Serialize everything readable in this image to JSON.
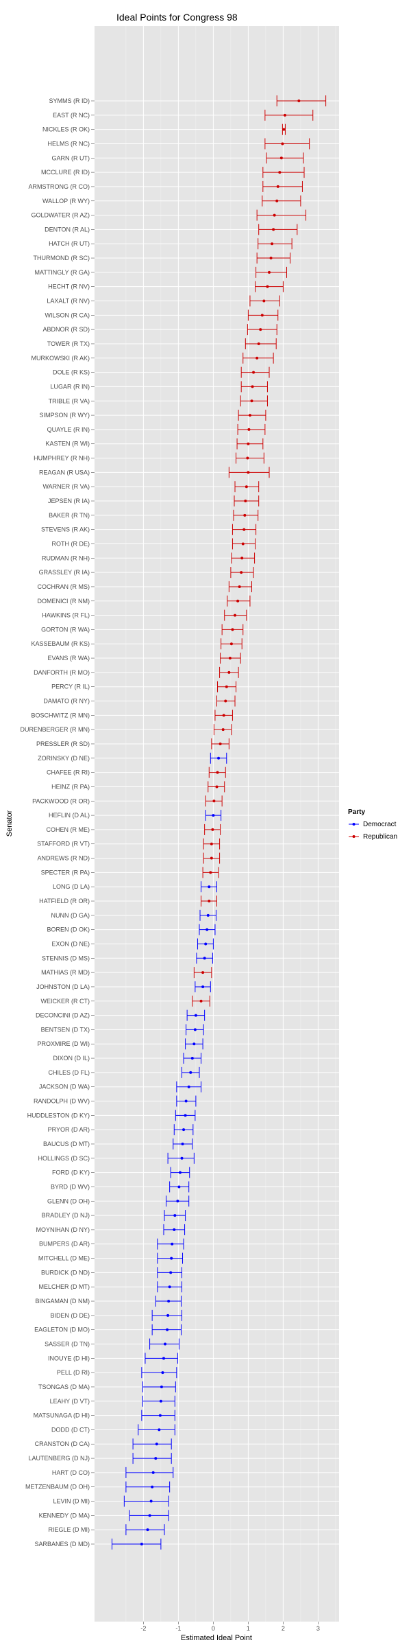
{
  "chart_data": {
    "type": "scatter",
    "title": "Ideal Points for Congress 98",
    "xlabel": "Estimated Ideal Point",
    "ylabel": "Senator",
    "xlim": [
      -3.4,
      3.6
    ],
    "xticks": [
      -2,
      -1,
      0,
      1,
      2,
      3
    ],
    "grid": true,
    "legend": {
      "title": "Party",
      "position": "right"
    },
    "series": [
      {
        "name": "Democract",
        "color": "#0000ff"
      },
      {
        "name": "Republican",
        "color": "#cc0000"
      }
    ],
    "senators": [
      {
        "name": "SYMMS (R ID)",
        "party": "Republican",
        "x": 2.45,
        "lo": 1.82,
        "hi": 3.22
      },
      {
        "name": "EAST (R NC)",
        "party": "Republican",
        "x": 2.05,
        "lo": 1.48,
        "hi": 2.85
      },
      {
        "name": "NICKLES (R OK)",
        "party": "Republican",
        "x": 2.02,
        "lo": 1.98,
        "hi": 2.06
      },
      {
        "name": "HELMS (R NC)",
        "party": "Republican",
        "x": 1.98,
        "lo": 1.48,
        "hi": 2.75
      },
      {
        "name": "GARN (R UT)",
        "party": "Republican",
        "x": 1.95,
        "lo": 1.52,
        "hi": 2.58
      },
      {
        "name": "MCCLURE (R ID)",
        "party": "Republican",
        "x": 1.9,
        "lo": 1.42,
        "hi": 2.6
      },
      {
        "name": "ARMSTRONG (R CO)",
        "party": "Republican",
        "x": 1.85,
        "lo": 1.42,
        "hi": 2.55
      },
      {
        "name": "WALLOP (R WY)",
        "party": "Republican",
        "x": 1.82,
        "lo": 1.4,
        "hi": 2.5
      },
      {
        "name": "GOLDWATER (R AZ)",
        "party": "Republican",
        "x": 1.75,
        "lo": 1.25,
        "hi": 2.65
      },
      {
        "name": "DENTON (R AL)",
        "party": "Republican",
        "x": 1.72,
        "lo": 1.3,
        "hi": 2.4
      },
      {
        "name": "HATCH (R UT)",
        "party": "Republican",
        "x": 1.68,
        "lo": 1.28,
        "hi": 2.25
      },
      {
        "name": "THURMOND (R SC)",
        "party": "Republican",
        "x": 1.65,
        "lo": 1.25,
        "hi": 2.2
      },
      {
        "name": "MATTINGLY (R GA)",
        "party": "Republican",
        "x": 1.6,
        "lo": 1.22,
        "hi": 2.1
      },
      {
        "name": "HECHT (R NV)",
        "party": "Republican",
        "x": 1.55,
        "lo": 1.2,
        "hi": 2.0
      },
      {
        "name": "LAXALT (R NV)",
        "party": "Republican",
        "x": 1.45,
        "lo": 1.05,
        "hi": 1.9
      },
      {
        "name": "WILSON (R CA)",
        "party": "Republican",
        "x": 1.4,
        "lo": 1.0,
        "hi": 1.85
      },
      {
        "name": "ABDNOR (R SD)",
        "party": "Republican",
        "x": 1.35,
        "lo": 0.98,
        "hi": 1.82
      },
      {
        "name": "TOWER (R TX)",
        "party": "Republican",
        "x": 1.3,
        "lo": 0.92,
        "hi": 1.8
      },
      {
        "name": "MURKOWSKI (R AK)",
        "party": "Republican",
        "x": 1.25,
        "lo": 0.85,
        "hi": 1.72
      },
      {
        "name": "DOLE (R KS)",
        "party": "Republican",
        "x": 1.15,
        "lo": 0.8,
        "hi": 1.6
      },
      {
        "name": "LUGAR (R IN)",
        "party": "Republican",
        "x": 1.12,
        "lo": 0.8,
        "hi": 1.55
      },
      {
        "name": "TRIBLE (R VA)",
        "party": "Republican",
        "x": 1.1,
        "lo": 0.78,
        "hi": 1.55
      },
      {
        "name": "SIMPSON (R WY)",
        "party": "Republican",
        "x": 1.05,
        "lo": 0.72,
        "hi": 1.5
      },
      {
        "name": "QUAYLE (R IN)",
        "party": "Republican",
        "x": 1.02,
        "lo": 0.7,
        "hi": 1.48
      },
      {
        "name": "KASTEN (R WI)",
        "party": "Republican",
        "x": 1.0,
        "lo": 0.68,
        "hi": 1.42
      },
      {
        "name": "HUMPHREY (R NH)",
        "party": "Republican",
        "x": 0.98,
        "lo": 0.65,
        "hi": 1.45
      },
      {
        "name": "REAGAN (R USA)",
        "party": "Republican",
        "x": 1.0,
        "lo": 0.45,
        "hi": 1.6
      },
      {
        "name": "WARNER (R VA)",
        "party": "Republican",
        "x": 0.95,
        "lo": 0.62,
        "hi": 1.3
      },
      {
        "name": "JEPSEN (R IA)",
        "party": "Republican",
        "x": 0.92,
        "lo": 0.6,
        "hi": 1.3
      },
      {
        "name": "BAKER (R TN)",
        "party": "Republican",
        "x": 0.9,
        "lo": 0.58,
        "hi": 1.28
      },
      {
        "name": "STEVENS (R AK)",
        "party": "Republican",
        "x": 0.88,
        "lo": 0.55,
        "hi": 1.22
      },
      {
        "name": "ROTH (R DE)",
        "party": "Republican",
        "x": 0.85,
        "lo": 0.55,
        "hi": 1.2
      },
      {
        "name": "RUDMAN (R NH)",
        "party": "Republican",
        "x": 0.82,
        "lo": 0.52,
        "hi": 1.18
      },
      {
        "name": "GRASSLEY (R IA)",
        "party": "Republican",
        "x": 0.8,
        "lo": 0.5,
        "hi": 1.15
      },
      {
        "name": "COCHRAN (R MS)",
        "party": "Republican",
        "x": 0.75,
        "lo": 0.45,
        "hi": 1.1
      },
      {
        "name": "DOMENICI (R NM)",
        "party": "Republican",
        "x": 0.7,
        "lo": 0.4,
        "hi": 1.05
      },
      {
        "name": "HAWKINS (R FL)",
        "party": "Republican",
        "x": 0.62,
        "lo": 0.32,
        "hi": 0.95
      },
      {
        "name": "GORTON (R WA)",
        "party": "Republican",
        "x": 0.55,
        "lo": 0.25,
        "hi": 0.85
      },
      {
        "name": "KASSEBAUM (R KS)",
        "party": "Republican",
        "x": 0.52,
        "lo": 0.22,
        "hi": 0.82
      },
      {
        "name": "EVANS (R WA)",
        "party": "Republican",
        "x": 0.48,
        "lo": 0.2,
        "hi": 0.78
      },
      {
        "name": "DANFORTH (R MO)",
        "party": "Republican",
        "x": 0.45,
        "lo": 0.18,
        "hi": 0.72
      },
      {
        "name": "PERCY (R IL)",
        "party": "Republican",
        "x": 0.38,
        "lo": 0.12,
        "hi": 0.65
      },
      {
        "name": "DAMATO (R NY)",
        "party": "Republican",
        "x": 0.35,
        "lo": 0.1,
        "hi": 0.62
      },
      {
        "name": "BOSCHWITZ (R MN)",
        "party": "Republican",
        "x": 0.3,
        "lo": 0.05,
        "hi": 0.55
      },
      {
        "name": "DURENBERGER (R MN)",
        "party": "Republican",
        "x": 0.28,
        "lo": 0.02,
        "hi": 0.52
      },
      {
        "name": "PRESSLER (R SD)",
        "party": "Republican",
        "x": 0.2,
        "lo": -0.05,
        "hi": 0.45
      },
      {
        "name": "ZORINSKY (D NE)",
        "party": "Democract",
        "x": 0.15,
        "lo": -0.08,
        "hi": 0.38
      },
      {
        "name": "CHAFEE (R RI)",
        "party": "Republican",
        "x": 0.12,
        "lo": -0.12,
        "hi": 0.35
      },
      {
        "name": "HEINZ (R PA)",
        "party": "Republican",
        "x": 0.1,
        "lo": -0.15,
        "hi": 0.32
      },
      {
        "name": "PACKWOOD (R OR)",
        "party": "Republican",
        "x": 0.02,
        "lo": -0.22,
        "hi": 0.25
      },
      {
        "name": "HEFLIN (D AL)",
        "party": "Democract",
        "x": 0.0,
        "lo": -0.22,
        "hi": 0.22
      },
      {
        "name": "COHEN (R ME)",
        "party": "Republican",
        "x": -0.02,
        "lo": -0.25,
        "hi": 0.2
      },
      {
        "name": "STAFFORD (R VT)",
        "party": "Republican",
        "x": -0.05,
        "lo": -0.28,
        "hi": 0.18
      },
      {
        "name": "ANDREWS (R ND)",
        "party": "Republican",
        "x": -0.05,
        "lo": -0.28,
        "hi": 0.18
      },
      {
        "name": "SPECTER (R PA)",
        "party": "Republican",
        "x": -0.08,
        "lo": -0.3,
        "hi": 0.15
      },
      {
        "name": "LONG (D LA)",
        "party": "Democract",
        "x": -0.12,
        "lo": -0.35,
        "hi": 0.1
      },
      {
        "name": "HATFIELD (R OR)",
        "party": "Republican",
        "x": -0.12,
        "lo": -0.35,
        "hi": 0.1
      },
      {
        "name": "NUNN (D GA)",
        "party": "Democract",
        "x": -0.15,
        "lo": -0.38,
        "hi": 0.08
      },
      {
        "name": "BOREN (D OK)",
        "party": "Democract",
        "x": -0.18,
        "lo": -0.4,
        "hi": 0.05
      },
      {
        "name": "EXON (D NE)",
        "party": "Democract",
        "x": -0.22,
        "lo": -0.45,
        "hi": 0.0
      },
      {
        "name": "STENNIS (D MS)",
        "party": "Democract",
        "x": -0.25,
        "lo": -0.48,
        "hi": -0.02
      },
      {
        "name": "MATHIAS (R MD)",
        "party": "Republican",
        "x": -0.3,
        "lo": -0.55,
        "hi": -0.05
      },
      {
        "name": "JOHNSTON (D LA)",
        "party": "Democract",
        "x": -0.3,
        "lo": -0.52,
        "hi": -0.08
      },
      {
        "name": "WEICKER (R CT)",
        "party": "Republican",
        "x": -0.35,
        "lo": -0.6,
        "hi": -0.1
      },
      {
        "name": "DECONCINI (D AZ)",
        "party": "Democract",
        "x": -0.5,
        "lo": -0.75,
        "hi": -0.25
      },
      {
        "name": "BENTSEN (D TX)",
        "party": "Democract",
        "x": -0.52,
        "lo": -0.78,
        "hi": -0.28
      },
      {
        "name": "PROXMIRE (D WI)",
        "party": "Democract",
        "x": -0.55,
        "lo": -0.8,
        "hi": -0.3
      },
      {
        "name": "DIXON (D IL)",
        "party": "Democract",
        "x": -0.6,
        "lo": -0.85,
        "hi": -0.35
      },
      {
        "name": "CHILES (D FL)",
        "party": "Democract",
        "x": -0.65,
        "lo": -0.9,
        "hi": -0.4
      },
      {
        "name": "JACKSON (D WA)",
        "party": "Democract",
        "x": -0.7,
        "lo": -1.05,
        "hi": -0.35
      },
      {
        "name": "RANDOLPH (D WV)",
        "party": "Democract",
        "x": -0.78,
        "lo": -1.05,
        "hi": -0.5
      },
      {
        "name": "HUDDLESTON (D KY)",
        "party": "Democract",
        "x": -0.8,
        "lo": -1.08,
        "hi": -0.52
      },
      {
        "name": "PRYOR (D AR)",
        "party": "Democract",
        "x": -0.85,
        "lo": -1.12,
        "hi": -0.58
      },
      {
        "name": "BAUCUS (D MT)",
        "party": "Democract",
        "x": -0.88,
        "lo": -1.15,
        "hi": -0.6
      },
      {
        "name": "HOLLINGS (D SC)",
        "party": "Democract",
        "x": -0.9,
        "lo": -1.3,
        "hi": -0.55
      },
      {
        "name": "FORD (D KY)",
        "party": "Democract",
        "x": -0.95,
        "lo": -1.22,
        "hi": -0.68
      },
      {
        "name": "BYRD (D WV)",
        "party": "Democract",
        "x": -0.98,
        "lo": -1.25,
        "hi": -0.7
      },
      {
        "name": "GLENN (D OH)",
        "party": "Democract",
        "x": -1.02,
        "lo": -1.35,
        "hi": -0.7
      },
      {
        "name": "BRADLEY (D NJ)",
        "party": "Democract",
        "x": -1.1,
        "lo": -1.4,
        "hi": -0.8
      },
      {
        "name": "MOYNIHAN (D NY)",
        "party": "Democract",
        "x": -1.12,
        "lo": -1.42,
        "hi": -0.82
      },
      {
        "name": "BUMPERS (D AR)",
        "party": "Democract",
        "x": -1.18,
        "lo": -1.6,
        "hi": -0.85
      },
      {
        "name": "MITCHELL (D ME)",
        "party": "Democract",
        "x": -1.2,
        "lo": -1.6,
        "hi": -0.88
      },
      {
        "name": "BURDICK (D ND)",
        "party": "Democract",
        "x": -1.22,
        "lo": -1.6,
        "hi": -0.9
      },
      {
        "name": "MELCHER (D MT)",
        "party": "Democract",
        "x": -1.25,
        "lo": -1.6,
        "hi": -0.9
      },
      {
        "name": "BINGAMAN (D NM)",
        "party": "Democract",
        "x": -1.28,
        "lo": -1.65,
        "hi": -0.92
      },
      {
        "name": "BIDEN (D DE)",
        "party": "Democract",
        "x": -1.3,
        "lo": -1.75,
        "hi": -0.9
      },
      {
        "name": "EAGLETON (D MO)",
        "party": "Democract",
        "x": -1.32,
        "lo": -1.75,
        "hi": -0.92
      },
      {
        "name": "SASSER (D TN)",
        "party": "Democract",
        "x": -1.38,
        "lo": -1.82,
        "hi": -0.98
      },
      {
        "name": "INOUYE (D HI)",
        "party": "Democract",
        "x": -1.42,
        "lo": -1.95,
        "hi": -1.02
      },
      {
        "name": "PELL (D RI)",
        "party": "Democract",
        "x": -1.45,
        "lo": -2.05,
        "hi": -1.05
      },
      {
        "name": "TSONGAS (D MA)",
        "party": "Democract",
        "x": -1.48,
        "lo": -2.02,
        "hi": -1.08
      },
      {
        "name": "LEAHY (D VT)",
        "party": "Democract",
        "x": -1.5,
        "lo": -2.02,
        "hi": -1.1
      },
      {
        "name": "MATSUNAGA (D HI)",
        "party": "Democract",
        "x": -1.52,
        "lo": -2.05,
        "hi": -1.1
      },
      {
        "name": "DODD (D CT)",
        "party": "Democract",
        "x": -1.55,
        "lo": -2.15,
        "hi": -1.1
      },
      {
        "name": "CRANSTON (D CA)",
        "party": "Democract",
        "x": -1.62,
        "lo": -2.3,
        "hi": -1.2
      },
      {
        "name": "LAUTENBERG (D NJ)",
        "party": "Democract",
        "x": -1.65,
        "lo": -2.3,
        "hi": -1.2
      },
      {
        "name": "HART (D CO)",
        "party": "Democract",
        "x": -1.72,
        "lo": -2.5,
        "hi": -1.15
      },
      {
        "name": "METZENBAUM (D OH)",
        "party": "Democract",
        "x": -1.75,
        "lo": -2.5,
        "hi": -1.25
      },
      {
        "name": "LEVIN (D MI)",
        "party": "Democract",
        "x": -1.78,
        "lo": -2.55,
        "hi": -1.28
      },
      {
        "name": "KENNEDY (D MA)",
        "party": "Democract",
        "x": -1.82,
        "lo": -2.4,
        "hi": -1.28
      },
      {
        "name": "RIEGLE (D MI)",
        "party": "Democract",
        "x": -1.88,
        "lo": -2.5,
        "hi": -1.4
      },
      {
        "name": "SARBANES (D MD)",
        "party": "Democract",
        "x": -2.05,
        "lo": -2.9,
        "hi": -1.5
      }
    ]
  }
}
